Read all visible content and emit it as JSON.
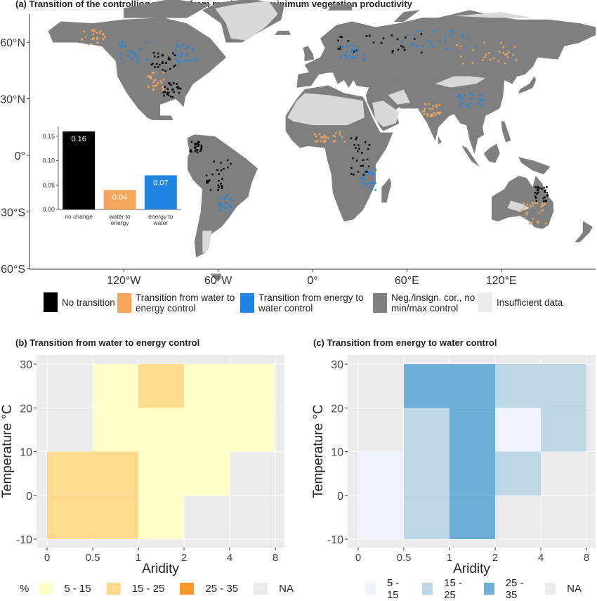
{
  "panel_a": {
    "title": "(a) Transition of the controlling variable from maximum to minimum vegetation productivity",
    "lat_labels": [
      "60°N",
      "30°N",
      "0°",
      "30°S",
      "60°S"
    ],
    "lon_labels": [
      "120°W",
      "60°W",
      "0°",
      "60°E",
      "120°E"
    ],
    "legend": [
      {
        "label": "No transition",
        "color": "#000000"
      },
      {
        "label": "Transition from water to energy control",
        "color": "#f5a65b"
      },
      {
        "label": "Transition from energy to water control",
        "color": "#1f86e8"
      },
      {
        "label": "Neg./insign. cor., no min/max control",
        "color": "#7f7f7f"
      },
      {
        "label": "Insufficient data",
        "color": "#ececec"
      }
    ]
  },
  "chart_data": [
    {
      "type": "bar",
      "categories": [
        "no change",
        "water to energy",
        "energy to water"
      ],
      "values": [
        0.16,
        0.04,
        0.07
      ],
      "value_labels": [
        "0.16",
        "0.04",
        "0.07"
      ],
      "colors": [
        "#000000",
        "#f5a65b",
        "#1f86e8"
      ],
      "ylim": [
        0,
        0.17
      ],
      "yticks": [
        "0.00",
        "0.05",
        "0.10",
        "0.15"
      ]
    },
    {
      "type": "heatmap",
      "title": "(b) Transition from water to energy control",
      "xlabel": "Aridity",
      "ylabel": "Temperature °C",
      "x_ticks": [
        "0",
        "0.5",
        "1",
        "2",
        "4",
        "8"
      ],
      "y_ticks": [
        "-10",
        "0",
        "10",
        "20",
        "30"
      ],
      "legend_title": "%",
      "legend": [
        {
          "label": "5 - 15",
          "color": "#ffffcc"
        },
        {
          "label": "15 - 25",
          "color": "#fed98e"
        },
        {
          "label": "25 - 35",
          "color": "#fe9929"
        },
        {
          "label": "NA",
          "color": "#ebebeb"
        }
      ],
      "cells": [
        {
          "x": [
            0,
            0.5
          ],
          "y": [
            -10,
            0
          ],
          "class": "15 - 25"
        },
        {
          "x": [
            0,
            0.5
          ],
          "y": [
            0,
            10
          ],
          "class": "15 - 25"
        },
        {
          "x": [
            0.5,
            1
          ],
          "y": [
            -10,
            0
          ],
          "class": "15 - 25"
        },
        {
          "x": [
            0.5,
            1
          ],
          "y": [
            0,
            10
          ],
          "class": "15 - 25"
        },
        {
          "x": [
            0.5,
            1
          ],
          "y": [
            10,
            20
          ],
          "class": "5 - 15"
        },
        {
          "x": [
            0.5,
            1
          ],
          "y": [
            20,
            30
          ],
          "class": "5 - 15"
        },
        {
          "x": [
            1,
            2
          ],
          "y": [
            -10,
            0
          ],
          "class": "5 - 15"
        },
        {
          "x": [
            1,
            2
          ],
          "y": [
            0,
            10
          ],
          "class": "5 - 15"
        },
        {
          "x": [
            1,
            2
          ],
          "y": [
            10,
            20
          ],
          "class": "5 - 15"
        },
        {
          "x": [
            1,
            2
          ],
          "y": [
            20,
            30
          ],
          "class": "15 - 25"
        },
        {
          "x": [
            2,
            4
          ],
          "y": [
            0,
            10
          ],
          "class": "5 - 15"
        },
        {
          "x": [
            2,
            4
          ],
          "y": [
            10,
            20
          ],
          "class": "5 - 15"
        },
        {
          "x": [
            2,
            4
          ],
          "y": [
            20,
            30
          ],
          "class": "5 - 15"
        },
        {
          "x": [
            4,
            8
          ],
          "y": [
            10,
            20
          ],
          "class": "5 - 15"
        },
        {
          "x": [
            4,
            8
          ],
          "y": [
            20,
            30
          ],
          "class": "5 - 15"
        }
      ]
    },
    {
      "type": "heatmap",
      "title": "(c) Transition from energy to water control",
      "xlabel": "Aridity",
      "ylabel": "Temperature °C",
      "x_ticks": [
        "0",
        "0.5",
        "1",
        "2",
        "4",
        "8"
      ],
      "y_ticks": [
        "-10",
        "0",
        "10",
        "20",
        "30"
      ],
      "legend": [
        {
          "label": "5 - 15",
          "color": "#eff3ff"
        },
        {
          "label": "15 - 25",
          "color": "#bdd7e7"
        },
        {
          "label": "25 - 35",
          "color": "#6baed6"
        },
        {
          "label": "NA",
          "color": "#ebebeb"
        }
      ],
      "cells": [
        {
          "x": [
            0,
            0.5
          ],
          "y": [
            -10,
            0
          ],
          "class": "5 - 15"
        },
        {
          "x": [
            0,
            0.5
          ],
          "y": [
            0,
            10
          ],
          "class": "5 - 15"
        },
        {
          "x": [
            0.5,
            1
          ],
          "y": [
            -10,
            0
          ],
          "class": "15 - 25"
        },
        {
          "x": [
            0.5,
            1
          ],
          "y": [
            0,
            10
          ],
          "class": "15 - 25"
        },
        {
          "x": [
            0.5,
            1
          ],
          "y": [
            10,
            20
          ],
          "class": "15 - 25"
        },
        {
          "x": [
            0.5,
            1
          ],
          "y": [
            20,
            30
          ],
          "class": "25 - 35"
        },
        {
          "x": [
            1,
            2
          ],
          "y": [
            -10,
            0
          ],
          "class": "25 - 35"
        },
        {
          "x": [
            1,
            2
          ],
          "y": [
            0,
            10
          ],
          "class": "25 - 35"
        },
        {
          "x": [
            1,
            2
          ],
          "y": [
            10,
            20
          ],
          "class": "25 - 35"
        },
        {
          "x": [
            1,
            2
          ],
          "y": [
            20,
            30
          ],
          "class": "25 - 35"
        },
        {
          "x": [
            2,
            4
          ],
          "y": [
            0,
            10
          ],
          "class": "15 - 25"
        },
        {
          "x": [
            2,
            4
          ],
          "y": [
            10,
            20
          ],
          "class": "5 - 15"
        },
        {
          "x": [
            2,
            4
          ],
          "y": [
            20,
            30
          ],
          "class": "15 - 25"
        },
        {
          "x": [
            4,
            8
          ],
          "y": [
            10,
            20
          ],
          "class": "15 - 25"
        },
        {
          "x": [
            4,
            8
          ],
          "y": [
            20,
            30
          ],
          "class": "15 - 25"
        }
      ]
    }
  ]
}
